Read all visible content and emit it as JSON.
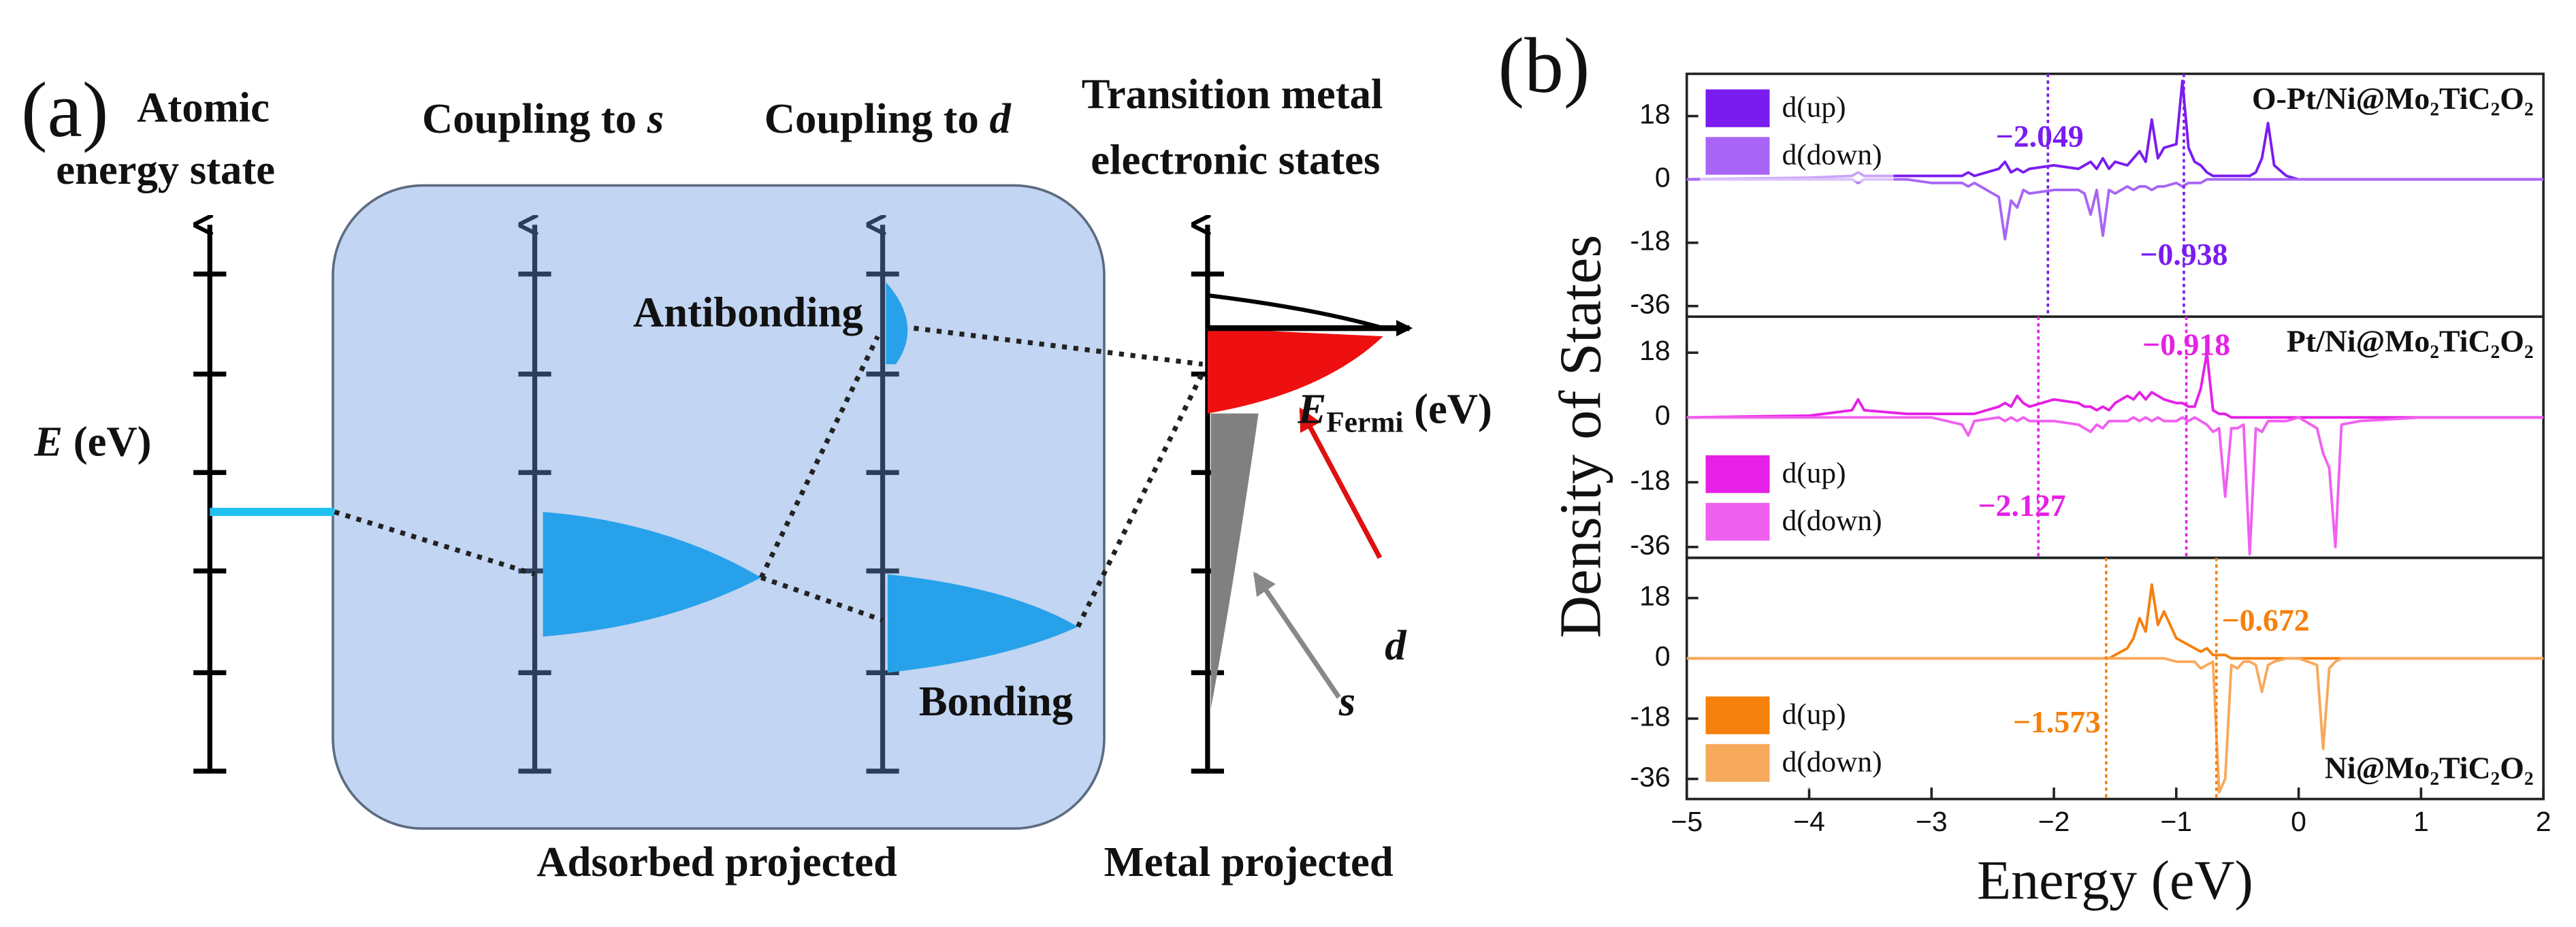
{
  "panel_a": {
    "label": "(a)",
    "atomic": [
      "Atomic",
      "energy state"
    ],
    "coupling_s": [
      "Coupling to ",
      "s"
    ],
    "coupling_d": [
      "Coupling to ",
      "d"
    ],
    "metal_states": [
      "Transition metal",
      "electronic states"
    ],
    "energy_axis": [
      "E",
      " (eV)"
    ],
    "antibonding": "Antibonding",
    "bonding": "Bonding",
    "fermi": [
      "E",
      "Fermi",
      " (eV)"
    ],
    "d": "d",
    "s": "s",
    "adsorbed": "Adsorbed projected",
    "metal": "Metal projected"
  },
  "panel_b_label": "(b)",
  "chart_data": [
    {
      "type": "line",
      "title": "O-Pt/Ni@Mo₂TiC₂O₂",
      "title_loc": "upper right",
      "legend": "upper left",
      "x": [
        -5,
        -4,
        -3.65,
        -3.6,
        -3.55,
        -3.2,
        -3,
        -2.75,
        -2.7,
        -2.65,
        -2.45,
        -2.4,
        -2.35,
        -2.3,
        -2.25,
        -2.2,
        -2,
        -1.8,
        -1.75,
        -1.7,
        -1.65,
        -1.6,
        -1.55,
        -1.5,
        -1.4,
        -1.35,
        -1.3,
        -1.25,
        -1.2,
        -1.15,
        -1.1,
        -1,
        -0.95,
        -0.9,
        -0.85,
        -0.8,
        -0.75,
        -0.7,
        -0.65,
        -0.6,
        -0.55,
        -0.5,
        -0.45,
        -0.4,
        -0.35,
        -0.3,
        -0.25,
        -0.2,
        -0.1,
        0,
        0.15,
        0.2,
        0.25,
        0.3,
        0.35,
        0.5,
        1,
        2
      ],
      "series": [
        {
          "name": "d(up)",
          "color": "#7a1cf0",
          "values": [
            0,
            0.5,
            1,
            2,
            1,
            1,
            1,
            1,
            2,
            1,
            3,
            5,
            2,
            3,
            2,
            3,
            4,
            3,
            4,
            5,
            3,
            6,
            3,
            5,
            4,
            6,
            8,
            5,
            17,
            6,
            9,
            10,
            28,
            9,
            5,
            4,
            2,
            1,
            1,
            1,
            1,
            1,
            1,
            1,
            2,
            6,
            16,
            4,
            1,
            0,
            0,
            0,
            0,
            0,
            0,
            0,
            0,
            0
          ]
        },
        {
          "name": "d(down)",
          "color": "#a865f5",
          "values": [
            0,
            0,
            0,
            -1,
            0,
            0,
            -1,
            -1,
            -2,
            -1,
            -5,
            -17,
            -6,
            -8,
            -3,
            -4,
            -3,
            -3,
            -4,
            -10,
            -3,
            -16,
            -3,
            -4,
            -2,
            -3,
            -2,
            -2,
            -3,
            -2,
            -2,
            -1,
            -2,
            -1,
            -1,
            -1,
            0,
            0,
            0,
            0,
            0,
            0,
            0,
            0,
            0,
            0,
            0,
            0,
            0,
            0,
            0,
            0,
            0,
            0,
            0,
            0,
            0,
            0
          ]
        }
      ],
      "d_band_centers": [
        {
          "value": -2.049,
          "label": "−2.049"
        },
        {
          "value": -0.938,
          "label": "−0.938"
        }
      ],
      "xlim": [
        -5,
        2
      ],
      "ylim": [
        -39,
        30
      ],
      "yticks": [
        -36,
        -18,
        0,
        18
      ]
    },
    {
      "type": "line",
      "title": "Pt/Ni@Mo₂TiC₂O₂",
      "title_loc": "upper right",
      "legend": "lower left",
      "ylabel": "Density of States",
      "x": [
        -5,
        -4,
        -3.65,
        -3.6,
        -3.55,
        -3.2,
        -3,
        -2.75,
        -2.7,
        -2.65,
        -2.45,
        -2.4,
        -2.35,
        -2.3,
        -2.25,
        -2.2,
        -2,
        -1.8,
        -1.75,
        -1.7,
        -1.65,
        -1.6,
        -1.55,
        -1.5,
        -1.4,
        -1.35,
        -1.3,
        -1.25,
        -1.2,
        -1.15,
        -1.1,
        -1,
        -0.95,
        -0.9,
        -0.85,
        -0.8,
        -0.75,
        -0.7,
        -0.65,
        -0.6,
        -0.55,
        -0.5,
        -0.45,
        -0.4,
        -0.35,
        -0.3,
        -0.25,
        -0.2,
        -0.1,
        0,
        0.15,
        0.2,
        0.25,
        0.3,
        0.35,
        0.5,
        1,
        2
      ],
      "series": [
        {
          "name": "d(up)",
          "color": "#e620e6",
          "values": [
            0,
            0.5,
            2,
            5,
            2,
            1,
            1,
            1,
            1,
            1,
            3,
            4,
            3,
            6,
            4,
            3,
            5,
            4,
            3,
            3,
            2,
            3,
            2,
            4,
            6,
            5,
            7,
            5,
            7,
            6,
            5,
            4,
            4,
            3,
            3,
            8,
            18,
            2,
            1,
            1,
            0,
            0,
            0,
            0,
            0,
            0,
            0,
            0,
            0,
            0,
            0,
            0,
            0,
            0,
            0,
            0,
            0,
            0
          ]
        },
        {
          "name": "d(down)",
          "color": "#f060f0",
          "values": [
            0,
            0,
            0,
            0,
            0,
            0,
            0,
            -2,
            -5,
            -1,
            0,
            -1,
            0,
            -1,
            0,
            -1,
            -1,
            -2,
            -3,
            -4,
            -2,
            -3,
            -1,
            -1,
            -1,
            0,
            -1,
            0,
            -1,
            0,
            -1,
            -1,
            0,
            -1,
            0,
            -1,
            -2,
            -4,
            -3,
            -22,
            -3,
            -3,
            -2,
            -38,
            -3,
            -4,
            -1,
            -1,
            -1,
            0,
            -3,
            -10,
            -14,
            -36,
            -2,
            -1,
            0,
            0
          ]
        }
      ],
      "d_band_centers": [
        {
          "value": -0.918,
          "label": "−0.918"
        },
        {
          "value": -2.127,
          "label": "−2.127"
        }
      ],
      "xlim": [
        -5,
        2
      ],
      "ylim": [
        -39,
        28
      ],
      "yticks": [
        -36,
        -18,
        0,
        18
      ]
    },
    {
      "type": "line",
      "title": "Ni@Mo₂TiC₂O₂",
      "title_loc": "lower right",
      "legend": "lower left",
      "xlabel": "Energy (eV)",
      "x": [
        -5,
        -4,
        -3.65,
        -3.6,
        -3.55,
        -3.2,
        -3,
        -2.75,
        -2.7,
        -2.65,
        -2.45,
        -2.4,
        -2.35,
        -2.3,
        -2.25,
        -2.2,
        -2,
        -1.8,
        -1.75,
        -1.7,
        -1.65,
        -1.6,
        -1.55,
        -1.5,
        -1.4,
        -1.35,
        -1.3,
        -1.25,
        -1.2,
        -1.15,
        -1.1,
        -1,
        -0.95,
        -0.9,
        -0.85,
        -0.8,
        -0.75,
        -0.7,
        -0.65,
        -0.6,
        -0.55,
        -0.5,
        -0.45,
        -0.4,
        -0.35,
        -0.3,
        -0.25,
        -0.2,
        -0.1,
        0,
        0.15,
        0.2,
        0.25,
        0.3,
        0.35,
        0.5,
        1,
        2
      ],
      "series": [
        {
          "name": "d(up)",
          "color": "#f5800c",
          "values": [
            0,
            0,
            0,
            0,
            0,
            0,
            0,
            0,
            0,
            0,
            0,
            0,
            0,
            0,
            0,
            0,
            0,
            0,
            0,
            0,
            0,
            0,
            0,
            1,
            3,
            6,
            12,
            8,
            22,
            10,
            14,
            6,
            5,
            4,
            3,
            2,
            3,
            1,
            1,
            1,
            0,
            0,
            0,
            0,
            0,
            0,
            0,
            0,
            0,
            0,
            0,
            0,
            0,
            0,
            0,
            0,
            0,
            0
          ]
        },
        {
          "name": "d(down)",
          "color": "#f7a95c",
          "values": [
            0,
            0,
            0,
            0,
            0,
            0,
            0,
            0,
            0,
            0,
            0,
            0,
            0,
            0,
            0,
            0,
            0,
            0,
            0,
            0,
            0,
            0,
            0,
            0,
            0,
            0,
            0,
            0,
            0,
            0,
            0,
            -1,
            -1,
            -1,
            -1,
            -3,
            -2,
            -1,
            -40,
            -36,
            -2,
            -3,
            -1,
            -1,
            -2,
            -10,
            -2,
            -1,
            0,
            0,
            -2,
            -27,
            -3,
            -1,
            0,
            0,
            0,
            0
          ]
        }
      ],
      "d_band_centers": [
        {
          "value": -0.672,
          "label": "−0.672"
        },
        {
          "value": -1.573,
          "label": "−1.573"
        }
      ],
      "xlim": [
        -5,
        2
      ],
      "ylim": [
        -42,
        30
      ],
      "yticks": [
        -36,
        -18,
        0,
        18
      ],
      "xticks": [
        {
          "value": -5,
          "label": "−5"
        },
        {
          "value": -4,
          "label": "−4"
        },
        {
          "value": -3,
          "label": "−3"
        },
        {
          "value": -2,
          "label": "−2"
        },
        {
          "value": -1,
          "label": "−1"
        },
        0,
        1,
        2
      ]
    }
  ]
}
